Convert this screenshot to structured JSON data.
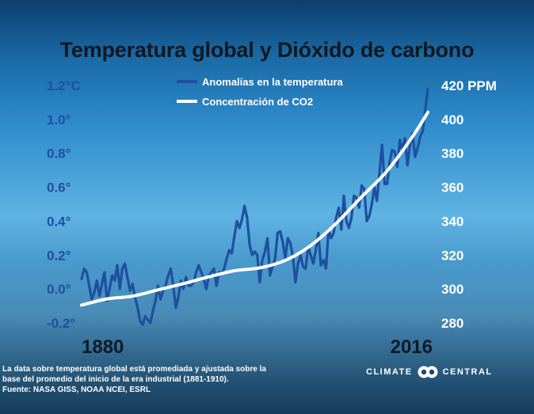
{
  "title": "Temperatura global y Dióxido de carbono",
  "colors": {
    "temperature": "#1f4fa0",
    "co2": "#ffffff",
    "left_ticks": "#1f4fa0",
    "right_ticks": "#ffffff"
  },
  "chart_data": {
    "type": "line",
    "title": "Temperatura global y Dióxido de carbono",
    "xlabel": "",
    "ylabel": "",
    "xlim": [
      1880,
      2016
    ],
    "x_tick_labels": [
      "1880",
      "2016"
    ],
    "left_axis": {
      "ylim": [
        -0.2,
        1.2
      ],
      "tick_labels": [
        "1.2°C",
        "1.0°",
        "0.8°",
        "0.6°",
        "0.4°",
        "0.2°",
        "0.0°",
        "-0.2°"
      ]
    },
    "right_axis": {
      "ylim": [
        280,
        420
      ],
      "tick_labels": [
        "420 PPM",
        "400",
        "380",
        "360",
        "340",
        "320",
        "300",
        "280"
      ]
    },
    "legend": [
      "Anomalías en la temperatura",
      "Concentración de CO2"
    ],
    "legend_position": "top-center",
    "series": [
      {
        "name": "Anomalías en la temperatura",
        "axis": "left",
        "x": [
          1880,
          1881,
          1882,
          1883,
          1884,
          1885,
          1886,
          1887,
          1888,
          1889,
          1890,
          1891,
          1892,
          1893,
          1894,
          1895,
          1896,
          1897,
          1898,
          1899,
          1900,
          1901,
          1902,
          1903,
          1904,
          1905,
          1906,
          1907,
          1908,
          1909,
          1910,
          1911,
          1912,
          1913,
          1914,
          1915,
          1916,
          1917,
          1918,
          1919,
          1920,
          1921,
          1922,
          1923,
          1924,
          1925,
          1926,
          1927,
          1928,
          1929,
          1930,
          1931,
          1932,
          1933,
          1934,
          1935,
          1936,
          1937,
          1938,
          1939,
          1940,
          1941,
          1942,
          1943,
          1944,
          1945,
          1946,
          1947,
          1948,
          1949,
          1950,
          1951,
          1952,
          1953,
          1954,
          1955,
          1956,
          1957,
          1958,
          1959,
          1960,
          1961,
          1962,
          1963,
          1964,
          1965,
          1966,
          1967,
          1968,
          1969,
          1970,
          1971,
          1972,
          1973,
          1974,
          1975,
          1976,
          1977,
          1978,
          1979,
          1980,
          1981,
          1982,
          1983,
          1984,
          1985,
          1986,
          1987,
          1988,
          1989,
          1990,
          1991,
          1992,
          1993,
          1994,
          1995,
          1996,
          1997,
          1998,
          1999,
          2000,
          2001,
          2002,
          2003,
          2004,
          2005,
          2006,
          2007,
          2008,
          2009,
          2010,
          2011,
          2012,
          2013,
          2014,
          2015,
          2016
        ],
        "values": [
          0.06,
          0.12,
          0.1,
          0.02,
          -0.06,
          -0.02,
          0.05,
          -0.04,
          0.03,
          0.1,
          -0.07,
          0.0,
          0.08,
          0.05,
          0.14,
          0.0,
          0.12,
          0.15,
          0.07,
          -0.01,
          0.03,
          -0.05,
          -0.11,
          -0.19,
          -0.21,
          -0.16,
          -0.18,
          -0.2,
          -0.13,
          -0.07,
          0.02,
          -0.06,
          -0.01,
          0.02,
          0.08,
          0.12,
          0.02,
          -0.11,
          -0.05,
          0.05,
          0.0,
          0.07,
          0.02,
          0.02,
          0.04,
          0.1,
          0.14,
          0.1,
          0.06,
          0.0,
          0.08,
          0.1,
          0.12,
          0.02,
          0.1,
          0.09,
          0.12,
          0.18,
          0.23,
          0.21,
          0.31,
          0.4,
          0.36,
          0.41,
          0.49,
          0.42,
          0.26,
          0.2,
          0.22,
          0.2,
          0.04,
          0.17,
          0.22,
          0.3,
          0.08,
          0.13,
          0.18,
          0.33,
          0.34,
          0.28,
          0.18,
          0.3,
          0.27,
          0.19,
          0.04,
          0.15,
          0.2,
          0.13,
          0.12,
          0.25,
          0.2,
          0.15,
          0.23,
          0.33,
          0.14,
          0.17,
          0.12,
          0.35,
          0.3,
          0.33,
          0.42,
          0.48,
          0.35,
          0.55,
          0.4,
          0.36,
          0.42,
          0.55,
          0.54,
          0.48,
          0.61,
          0.59,
          0.4,
          0.43,
          0.5,
          0.6,
          0.52,
          0.68,
          0.85,
          0.62,
          0.62,
          0.75,
          0.82,
          0.81,
          0.72,
          0.88,
          0.82,
          0.89,
          0.73,
          0.85,
          0.92,
          0.78,
          0.83,
          0.9,
          0.93,
          1.06,
          1.18
        ]
      },
      {
        "name": "Concentración de CO2",
        "axis": "right",
        "x": [
          1880,
          1890,
          1900,
          1910,
          1920,
          1930,
          1940,
          1950,
          1960,
          1970,
          1980,
          1990,
          2000,
          2010,
          2016
        ],
        "values": [
          290.5,
          294.2,
          295.8,
          299.5,
          303.2,
          307.2,
          310.8,
          312.5,
          316.9,
          325.7,
          338.7,
          354.4,
          369.6,
          389.9,
          404.2
        ]
      }
    ]
  },
  "footnote": {
    "line1": "La data sobre temperatura global está promediada y ajustada sobre la",
    "line2": "base del promedio del inicio de la era industrial (1881-1910).",
    "line3": "Fuente: NASA GISS, NOAA NCEI, ESRL"
  },
  "brand": {
    "left": "CLIMATE",
    "right": "CENTRAL",
    "logo_icon": "linked-rings-icon"
  }
}
